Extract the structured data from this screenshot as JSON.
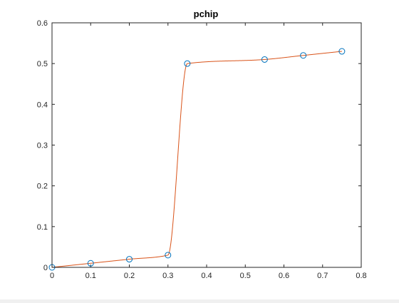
{
  "chart_data": {
    "type": "line",
    "title": "pchip",
    "xlabel": "",
    "ylabel": "",
    "xlim": [
      0,
      0.8
    ],
    "ylim": [
      0,
      0.6
    ],
    "xticks": [
      0,
      0.1,
      0.2,
      0.3,
      0.4,
      0.5,
      0.6,
      0.7,
      0.8
    ],
    "xtick_labels": [
      "0",
      "0.1",
      "0.2",
      "0.3",
      "0.4",
      "0.5",
      "0.6",
      "0.7",
      "0.8"
    ],
    "yticks": [
      0,
      0.1,
      0.2,
      0.3,
      0.4,
      0.5,
      0.6
    ],
    "ytick_labels": [
      "0",
      "0.1",
      "0.2",
      "0.3",
      "0.4",
      "0.5",
      "0.6"
    ],
    "grid": false,
    "legend": "none",
    "series": [
      {
        "style": "markers",
        "marker": "circle",
        "color": "#0072bd",
        "x": [
          0,
          0.1,
          0.2,
          0.3,
          0.35,
          0.55,
          0.65,
          0.75
        ],
        "y": [
          0,
          0.01,
          0.02,
          0.03,
          0.5,
          0.51,
          0.52,
          0.53
        ]
      },
      {
        "style": "line",
        "interpolation": "pchip",
        "color": "#d95319",
        "x": [
          0,
          0.1,
          0.2,
          0.3,
          0.35,
          0.55,
          0.65,
          0.75
        ],
        "y": [
          0,
          0.01,
          0.02,
          0.03,
          0.5,
          0.51,
          0.52,
          0.53
        ]
      }
    ]
  }
}
